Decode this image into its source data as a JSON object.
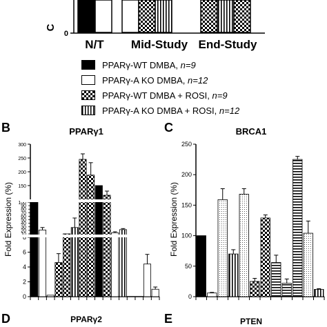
{
  "colors": {
    "ink": "#000000"
  },
  "top": {
    "ylabel_fragment": "C",
    "zero_tick": "0",
    "groups": [
      "N/T",
      "Mid-Study",
      "End-Study"
    ]
  },
  "legend": [
    {
      "label": "PPARγ-WT DMBA, ",
      "n": "n=9",
      "pattern": "solid"
    },
    {
      "label": "PPARγ-A KO DMBA, ",
      "n": "n=12",
      "pattern": "white"
    },
    {
      "label": "PPARγ-WT DMBA + ROSI, ",
      "n": "n=9",
      "pattern": "check"
    },
    {
      "label": "PPARγ-A KO DMBA + ROSI, ",
      "n": "n=12",
      "pattern": "vstripe"
    }
  ],
  "panel_letters": {
    "B": "B",
    "C": "C",
    "D": "D",
    "E": "E"
  },
  "chart_data": [
    {
      "type": "bar",
      "title": "PPARγ1",
      "ylabel": "Fold Expression (%)",
      "yaxis_broken": true,
      "yticks": [
        "0",
        "2",
        "4",
        "6",
        "8",
        "100",
        "150",
        "200",
        "250",
        "300"
      ],
      "minor_yticks": [
        "10",
        "20",
        "30",
        "40",
        "50",
        "60",
        "70",
        "80",
        "90"
      ],
      "values": [
        100,
        21,
        0.2,
        4.6,
        10,
        28,
        245,
        188,
        150,
        115,
        13,
        22,
        0,
        0,
        4.4,
        1.0
      ],
      "errors": [
        0,
        7,
        0,
        1.2,
        0,
        27,
        20,
        45,
        0,
        15,
        3,
        3,
        0,
        0,
        1.3,
        0.3
      ],
      "patterns": [
        "solid",
        "white",
        "white",
        "check",
        "check",
        "vstripe",
        "check",
        "check",
        "solid",
        "check",
        "white",
        "vstripe",
        "white",
        "white",
        "white",
        "white"
      ]
    },
    {
      "type": "bar",
      "title": "BRCA1",
      "ylabel": "Fold Expression (%)",
      "ylim": [
        0,
        250
      ],
      "yticks": [
        "0",
        "50",
        "100",
        "150",
        "200",
        "250"
      ],
      "values": [
        100,
        6,
        159,
        70,
        168,
        25,
        129,
        56,
        22,
        225,
        104,
        12
      ],
      "errors": [
        0,
        1,
        18,
        7,
        9,
        5,
        5,
        12,
        7,
        5,
        20,
        1
      ],
      "patterns": [
        "solid",
        "white",
        "dots",
        "vstripe",
        "dots",
        "check",
        "check",
        "hstripe",
        "hstripe",
        "hstripe",
        "dots",
        "vstripe"
      ]
    },
    {
      "type": "bar",
      "title": "PPARγ2"
    },
    {
      "type": "bar",
      "title": "PTEN"
    }
  ]
}
